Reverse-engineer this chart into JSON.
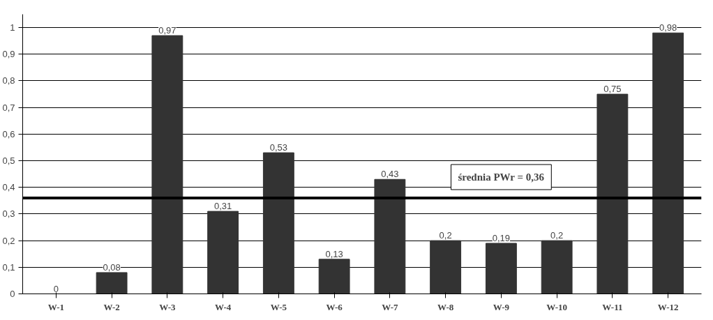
{
  "chart_data": {
    "type": "bar",
    "categories": [
      "W-1",
      "W-2",
      "W-3",
      "W-4",
      "W-5",
      "W-6",
      "W-7",
      "W-8",
      "W-9",
      "W-10",
      "W-11",
      "W-12"
    ],
    "values": [
      0,
      0.08,
      0.97,
      0.31,
      0.53,
      0.13,
      0.43,
      0.2,
      0.19,
      0.2,
      0.75,
      0.98
    ],
    "value_labels": [
      "0",
      "0,08",
      "0,97",
      "0,31",
      "0,53",
      "0,13",
      "0,43",
      "0,2",
      "0,19",
      "0,2",
      "0,75",
      "0,98"
    ],
    "color": "#333333",
    "ylim": [
      0,
      1.05
    ],
    "yticks": [
      0,
      {
        "value": 0.1,
        "label": "0,1"
      },
      {
        "value": 0.2,
        "label": "0,2"
      },
      {
        "value": 0.3,
        "label": "0,3"
      },
      {
        "value": 0.4,
        "label": "0,4"
      },
      {
        "value": 0.5,
        "label": "0,5"
      },
      {
        "value": 0.6,
        "label": "0,6"
      },
      {
        "value": 0.7,
        "label": "0,7"
      },
      {
        "value": 0.8,
        "label": "0,8"
      },
      {
        "value": 0.9,
        "label": "0,9"
      },
      1
    ],
    "grid": "y",
    "ref_lines": [
      {
        "axis": "y",
        "value": 0.36,
        "label": "średnia PWr = 0,36",
        "color": "#000000"
      }
    ]
  }
}
